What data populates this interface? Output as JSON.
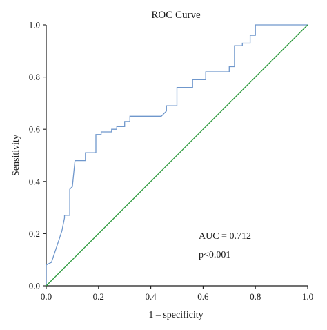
{
  "chart_data": {
    "type": "line",
    "title": "ROC Curve",
    "xlabel": "1 – specificity",
    "ylabel": "Sensitivity",
    "xlim": [
      0,
      1
    ],
    "ylim": [
      0,
      1
    ],
    "xticks": [
      "0.0",
      "0.2",
      "0.4",
      "0.6",
      "0.8",
      "1.0"
    ],
    "yticks": [
      "0.0",
      "0.2",
      "0.4",
      "0.6",
      "0.8",
      "1.0"
    ],
    "grid": false,
    "annotations": [
      "AUC = 0.712",
      "p<0.001"
    ],
    "series": [
      {
        "color": "#6f97cc",
        "x": [
          0,
          0,
          0.02,
          0.02,
          0.04,
          0.04,
          0.06,
          0.06,
          0.07,
          0.07,
          0.09,
          0.09,
          0.1,
          0.1,
          0.11,
          0.11,
          0.15,
          0.15,
          0.19,
          0.19,
          0.21,
          0.21,
          0.25,
          0.25,
          0.27,
          0.27,
          0.3,
          0.3,
          0.32,
          0.32,
          0.44,
          0.46,
          0.46,
          0.5,
          0.5,
          0.56,
          0.56,
          0.61,
          0.61,
          0.7,
          0.7,
          0.72,
          0.72,
          0.75,
          0.75,
          0.78,
          0.78,
          0.8,
          0.8,
          1.0
        ],
        "y": [
          0,
          0.08,
          0.09,
          0.09,
          0.15,
          0.15,
          0.21,
          0.21,
          0.26,
          0.27,
          0.27,
          0.37,
          0.38,
          0.38,
          0.48,
          0.48,
          0.48,
          0.51,
          0.51,
          0.58,
          0.58,
          0.59,
          0.59,
          0.6,
          0.6,
          0.61,
          0.61,
          0.63,
          0.63,
          0.65,
          0.65,
          0.67,
          0.69,
          0.69,
          0.76,
          0.76,
          0.79,
          0.79,
          0.82,
          0.82,
          0.84,
          0.84,
          0.92,
          0.92,
          0.93,
          0.93,
          0.96,
          0.96,
          1.0,
          1.0
        ]
      },
      {
        "color": "#2e9a3e",
        "x": [
          0,
          1
        ],
        "y": [
          0,
          1
        ]
      }
    ]
  }
}
